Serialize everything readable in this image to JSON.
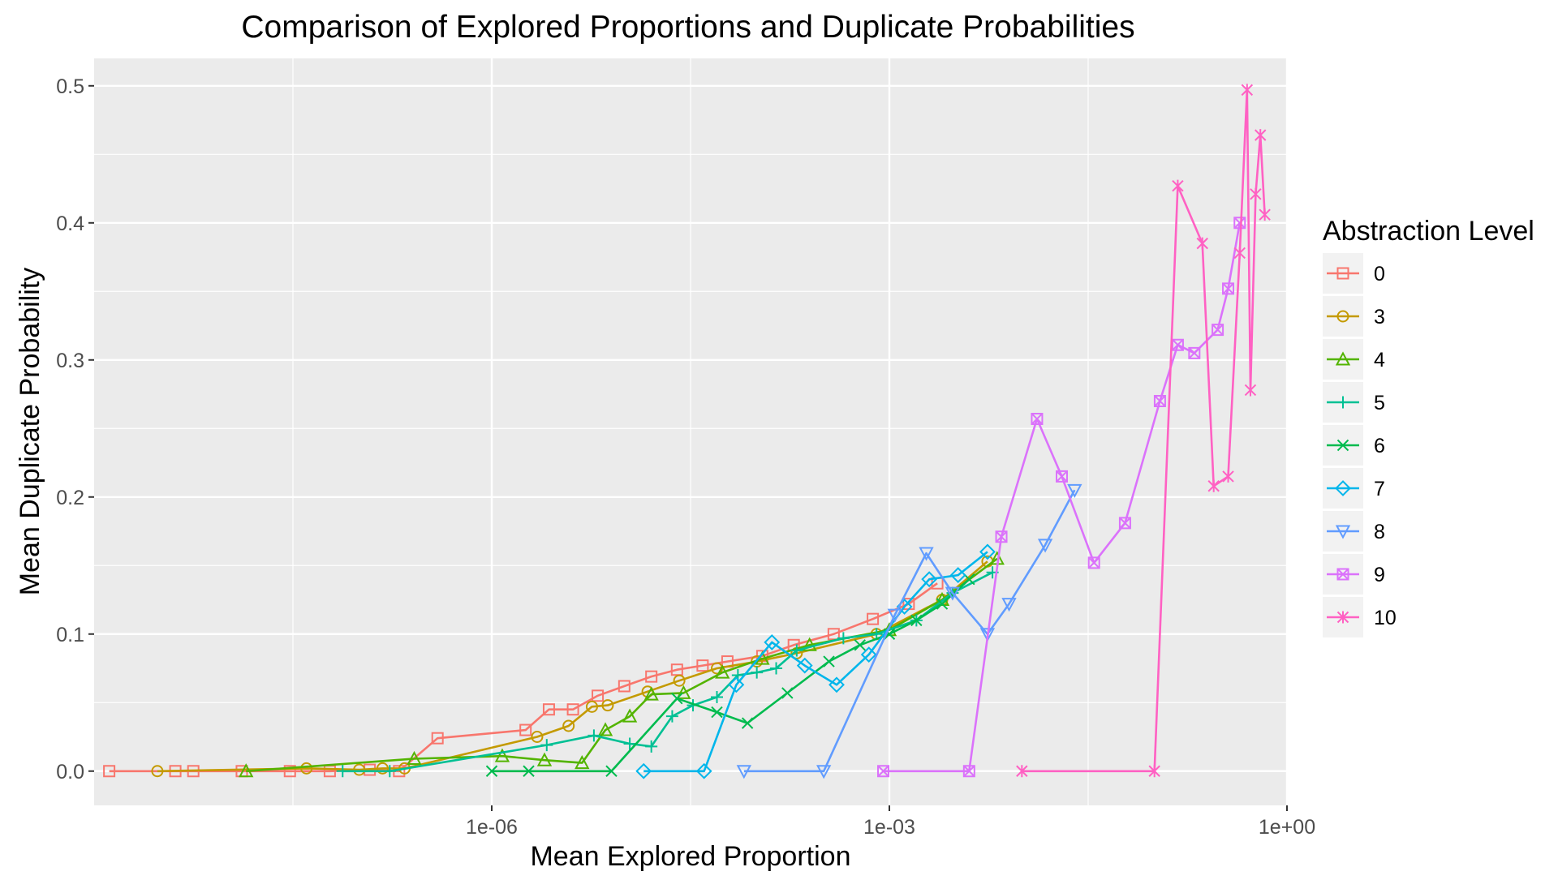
{
  "chart_data": {
    "type": "line",
    "title": "Comparison of Explored Proportions and Duplicate Probabilities",
    "xlabel": "Mean Explored Proportion",
    "ylabel": "Mean Duplicate Probability",
    "x_scale": "log10",
    "xlim": [
      1e-09,
      1.0
    ],
    "ylim": [
      -0.025,
      0.52
    ],
    "x_ticks": [
      {
        "value": 1e-06,
        "label": "1e-06"
      },
      {
        "value": 0.001,
        "label": "1e-03"
      },
      {
        "value": 1.0,
        "label": "1e+00"
      }
    ],
    "y_ticks": [
      {
        "value": 0.0,
        "label": "0.0"
      },
      {
        "value": 0.1,
        "label": "0.1"
      },
      {
        "value": 0.2,
        "label": "0.2"
      },
      {
        "value": 0.3,
        "label": "0.3"
      },
      {
        "value": 0.4,
        "label": "0.4"
      },
      {
        "value": 0.5,
        "label": "0.5"
      }
    ],
    "grid": true,
    "legend": {
      "title": "Abstraction Level",
      "position": "right"
    },
    "series": [
      {
        "name": "0",
        "color": "#F8766D",
        "marker": "square",
        "x": [
          1.3e-09,
          4.1e-09,
          5.6e-09,
          1.3e-08,
          3e-08,
          6e-08,
          1.2e-07,
          2e-07,
          3.9e-07,
          1.8e-06,
          2.7e-06,
          4.1e-06,
          6.3e-06,
          1e-05,
          1.6e-05,
          2.5e-05,
          3.9e-05,
          6e-05,
          0.00011,
          0.00019,
          0.00038,
          0.00075,
          0.0014,
          0.0023
        ],
        "y": [
          0.0,
          0.0,
          0.0,
          0.0,
          0.0,
          0.0,
          0.001,
          0.0,
          0.024,
          0.03,
          0.045,
          0.045,
          0.055,
          0.062,
          0.069,
          0.074,
          0.077,
          0.08,
          0.084,
          0.092,
          0.1,
          0.111,
          0.122,
          0.137
        ]
      },
      {
        "name": "3",
        "color": "#C49A00",
        "marker": "circle",
        "x": [
          3e-09,
          4e-08,
          1e-07,
          1.5e-07,
          2.2e-07,
          2.2e-06,
          3.8e-06,
          5.7e-06,
          7.5e-06,
          1.5e-05,
          2.6e-05,
          5e-05,
          0.0001,
          0.0002,
          0.0008,
          0.0025,
          0.0055
        ],
        "y": [
          0.0,
          0.002,
          0.001,
          0.002,
          0.002,
          0.025,
          0.033,
          0.047,
          0.048,
          0.058,
          0.066,
          0.075,
          0.08,
          0.086,
          0.1,
          0.125,
          0.153
        ]
      },
      {
        "name": "4",
        "color": "#53B400",
        "marker": "triangle-up",
        "x": [
          1.4e-08,
          2.6e-07,
          1.2e-06,
          2.5e-06,
          4.8e-06,
          7.2e-06,
          1.1e-05,
          1.6e-05,
          2.8e-05,
          5.5e-05,
          0.00011,
          0.00025,
          0.001,
          0.0025,
          0.0065
        ],
        "y": [
          0.0,
          0.009,
          0.011,
          0.008,
          0.006,
          0.03,
          0.04,
          0.056,
          0.057,
          0.072,
          0.082,
          0.092,
          0.103,
          0.125,
          0.155
        ]
      },
      {
        "name": "5",
        "color": "#00C094",
        "marker": "plus",
        "x": [
          7.5e-08,
          1.7e-07,
          2.6e-06,
          5.9e-06,
          1.1e-05,
          1.6e-05,
          2.3e-05,
          3.3e-05,
          5e-05,
          7.2e-05,
          0.0001,
          0.00014,
          0.0002,
          0.00045,
          0.0008,
          0.0016,
          0.003,
          0.006
        ],
        "y": [
          0.0,
          0.0,
          0.019,
          0.026,
          0.02,
          0.018,
          0.04,
          0.048,
          0.054,
          0.07,
          0.072,
          0.075,
          0.088,
          0.097,
          0.1,
          0.11,
          0.13,
          0.145
        ]
      },
      {
        "name": "6",
        "color": "#00BB4E",
        "marker": "cross",
        "x": [
          1e-06,
          1.9e-06,
          8e-06,
          2.5e-05,
          5e-05,
          8.5e-05,
          0.00017,
          0.00035,
          0.0006,
          0.001,
          0.0016,
          0.0025,
          0.004
        ],
        "y": [
          0.0,
          0.0,
          0.0,
          0.053,
          0.043,
          0.035,
          0.057,
          0.08,
          0.092,
          0.1,
          0.11,
          0.122,
          0.14
        ]
      },
      {
        "name": "7",
        "color": "#00B6EB",
        "marker": "diamond",
        "x": [
          1.4e-05,
          4e-05,
          7e-05,
          0.00013,
          0.00023,
          0.0004,
          0.0007,
          0.0013,
          0.002,
          0.0033,
          0.0055
        ],
        "y": [
          0.0,
          0.0,
          0.063,
          0.094,
          0.077,
          0.063,
          0.085,
          0.12,
          0.14,
          0.143,
          0.16
        ]
      },
      {
        "name": "8",
        "color": "#619CFF",
        "marker": "triangle-down",
        "x": [
          8e-05,
          0.00032,
          0.0011,
          0.0019,
          0.003,
          0.0055,
          0.008,
          0.015,
          0.025
        ],
        "y": [
          0.0,
          0.0,
          0.114,
          0.159,
          0.13,
          0.1,
          0.122,
          0.165,
          0.205
        ]
      },
      {
        "name": "9",
        "color": "#DB72FB",
        "marker": "square-cross",
        "x": [
          0.0009,
          0.004,
          0.007,
          0.013,
          0.02,
          0.035,
          0.06,
          0.11,
          0.15,
          0.2,
          0.3,
          0.36,
          0.44
        ],
        "y": [
          0.0,
          0.0,
          0.171,
          0.257,
          0.215,
          0.152,
          0.181,
          0.27,
          0.311,
          0.305,
          0.322,
          0.352,
          0.4
        ]
      },
      {
        "name": "10",
        "color": "#FF61C3",
        "marker": "asterisk",
        "x": [
          0.01,
          0.1,
          0.15,
          0.23,
          0.28,
          0.36,
          0.44,
          0.5,
          0.53,
          0.58,
          0.63,
          0.68
        ],
        "y": [
          0.0,
          0.0,
          0.427,
          0.385,
          0.208,
          0.215,
          0.378,
          0.497,
          0.278,
          0.421,
          0.464,
          0.406
        ]
      }
    ]
  }
}
